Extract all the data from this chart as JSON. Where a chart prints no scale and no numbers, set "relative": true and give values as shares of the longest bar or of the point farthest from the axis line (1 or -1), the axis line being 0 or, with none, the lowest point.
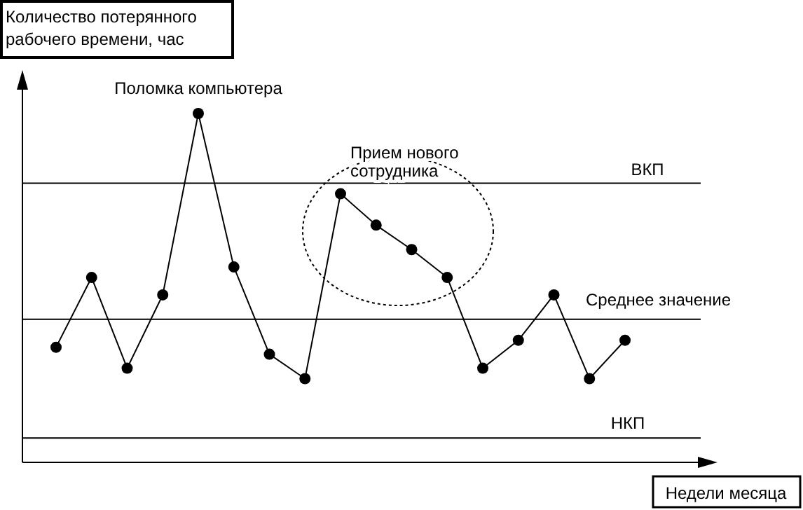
{
  "chart_data": {
    "type": "line",
    "relative": true,
    "ylabel": "Количество потерянного рабочего времени, час",
    "xlabel": "Недели месяца",
    "categories": [
      null,
      null,
      null,
      null,
      null,
      null,
      null,
      null,
      null,
      null,
      null,
      null,
      null,
      null,
      null,
      null,
      null
    ],
    "series": [
      {
        "color": "#000000",
        "values": [
          0.33,
          0.53,
          0.27,
          0.48,
          1,
          0.56,
          0.31,
          0.24,
          0.77,
          0.68,
          0.61,
          0.53,
          0.27,
          0.35,
          0.48,
          0.24,
          0.35
        ]
      }
    ],
    "ref_lines": [
      {
        "axis": "y",
        "value": 0.8,
        "label": "ВКП",
        "color": "#000000"
      },
      {
        "axis": "y",
        "value": 0.41,
        "label": "Среднее значение",
        "color": "#000000"
      },
      {
        "axis": "y",
        "value": 0.07,
        "label": "НКП",
        "color": "#000000"
      }
    ],
    "annotations": [
      "Поломка компьютера",
      "Прием нового сотрудника"
    ],
    "marker": "circle",
    "line_style": "solid"
  }
}
